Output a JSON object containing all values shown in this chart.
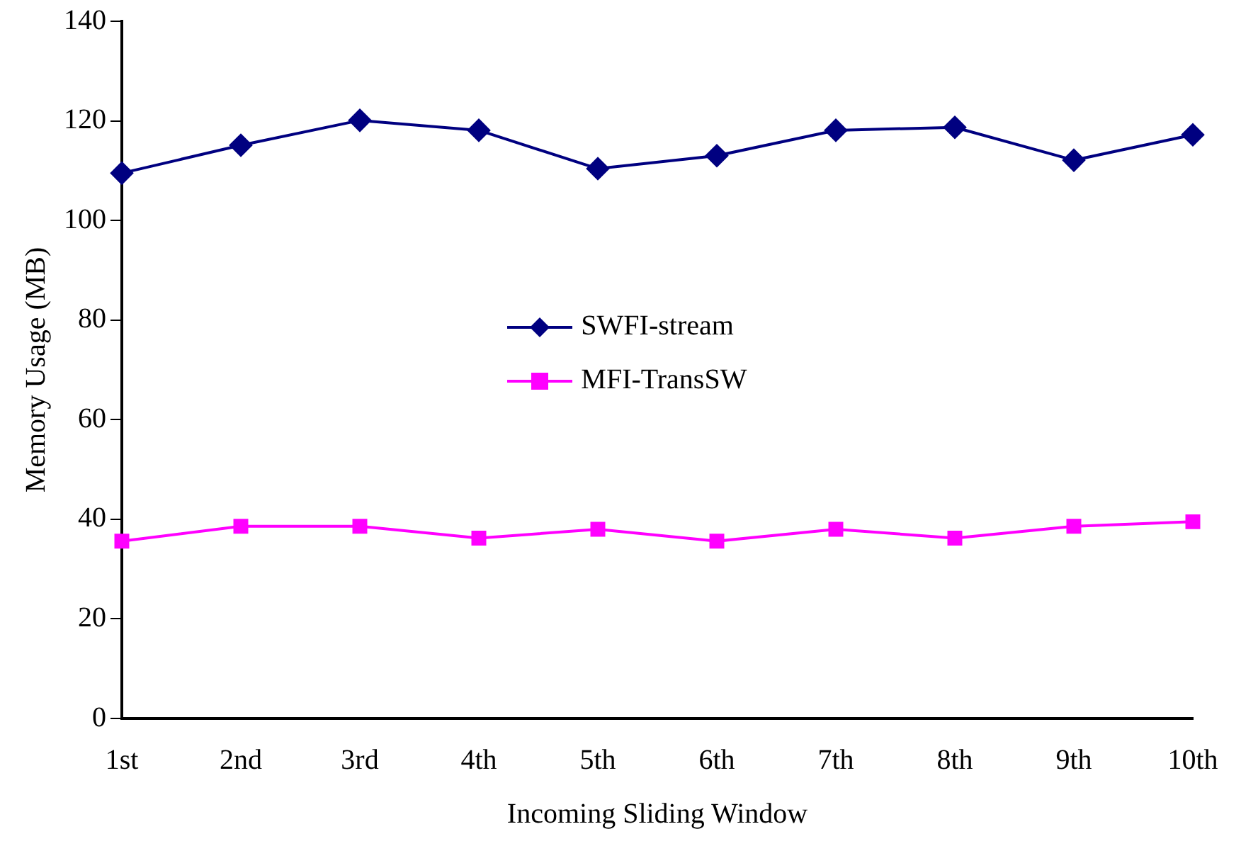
{
  "chart_data": {
    "type": "line",
    "xlabel": "Incoming Sliding Window",
    "ylabel": "Memory Usage (MB)",
    "categories": [
      "1st",
      "2nd",
      "3rd",
      "4th",
      "5th",
      "6th",
      "7th",
      "8th",
      "9th",
      "10th"
    ],
    "series": [
      {
        "name": "SWFI-stream",
        "color": "#000080",
        "marker": "diamond",
        "values": [
          109.5,
          115.1,
          120.1,
          118.1,
          110.4,
          113.0,
          118.1,
          118.7,
          112.1,
          117.2
        ]
      },
      {
        "name": "MFI-TransSW",
        "color": "#ff00ff",
        "marker": "square",
        "values": [
          35.6,
          38.6,
          38.6,
          36.2,
          38.0,
          35.6,
          38.0,
          36.2,
          38.6,
          39.5
        ]
      }
    ],
    "ylim": [
      0,
      140
    ],
    "yticks": [
      0,
      20,
      40,
      60,
      80,
      100,
      120,
      140
    ],
    "grid": false,
    "legend": "center",
    "line_style": "solid"
  }
}
